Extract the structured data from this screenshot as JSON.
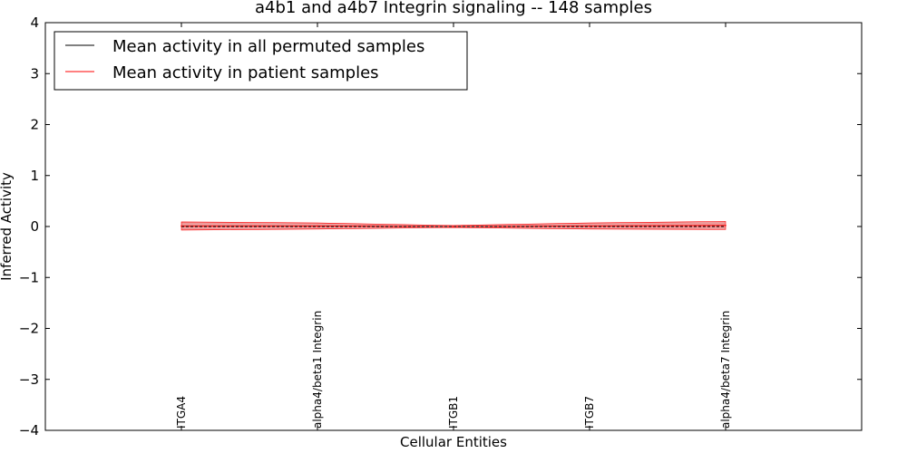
{
  "chart_data": {
    "type": "line",
    "title": "a4b1 and a4b7 Integrin signaling -- 148 samples",
    "xlabel": "Cellular Entities",
    "ylabel": "Inferred Activity",
    "ylim": [
      -4,
      4
    ],
    "yticks": [
      4,
      3,
      2,
      1,
      0,
      -1,
      -2,
      -3,
      -4
    ],
    "ytick_labels": [
      "4",
      "3",
      "2",
      "1",
      "0",
      "−1",
      "−2",
      "−3",
      "−4"
    ],
    "categories": [
      "ITGA4",
      "alpha4/beta1 Integrin",
      "ITGB1",
      "ITGB7",
      "alpha4/beta7 Integrin"
    ],
    "legend_position": "upper-left",
    "series": [
      {
        "name": "Mean activity in all permuted samples",
        "color": "#000000",
        "style": "dashed",
        "values": [
          0,
          0,
          0,
          0,
          0
        ]
      },
      {
        "name": "Mean activity in patient samples",
        "color": "#ff0000",
        "style": "solid",
        "values": [
          0.01,
          0.01,
          0.0,
          0.01,
          0.02
        ],
        "band_lower": [
          -0.07,
          -0.05,
          -0.02,
          -0.05,
          -0.06
        ],
        "band_upper": [
          0.09,
          0.07,
          0.02,
          0.07,
          0.1
        ],
        "band_color": "#e87878"
      }
    ]
  }
}
